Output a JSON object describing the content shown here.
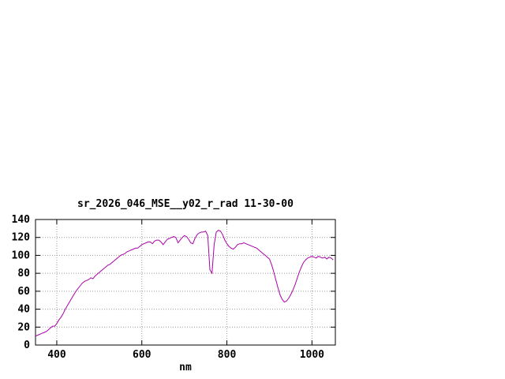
{
  "page": {
    "background": "#ffffff"
  },
  "chart_data": {
    "type": "line",
    "title": "sr_2026_046_MSE__y02_r_rad 11-30-00",
    "xlabel": "nm",
    "ylabel": "",
    "xlim": [
      350,
      1055
    ],
    "ylim": [
      0,
      140
    ],
    "xticks": [
      400,
      600,
      800,
      1000
    ],
    "yticks": [
      0,
      20,
      40,
      60,
      80,
      100,
      120,
      140
    ],
    "grid": true,
    "legend": "none",
    "line_color": "#aa00aa",
    "grid_color": "#9a9a9a",
    "border_color": "#000000",
    "series": [
      {
        "x": [
          350,
          355,
          360,
          365,
          370,
          375,
          380,
          385,
          390,
          395,
          400,
          405,
          410,
          415,
          420,
          425,
          430,
          435,
          440,
          445,
          450,
          455,
          460,
          465,
          470,
          475,
          480,
          485,
          490,
          495,
          500,
          505,
          510,
          515,
          520,
          525,
          530,
          535,
          540,
          545,
          550,
          555,
          560,
          565,
          570,
          575,
          580,
          585,
          590,
          595,
          600,
          605,
          610,
          615,
          620,
          625,
          630,
          635,
          640,
          645,
          650,
          655,
          660,
          665,
          670,
          675,
          680,
          685,
          690,
          695,
          700,
          705,
          710,
          715,
          720,
          725,
          730,
          735,
          740,
          745,
          750,
          755,
          760,
          765,
          770,
          775,
          780,
          785,
          790,
          795,
          800,
          805,
          810,
          815,
          820,
          825,
          830,
          835,
          840,
          845,
          850,
          855,
          860,
          865,
          870,
          875,
          880,
          885,
          890,
          895,
          900,
          905,
          910,
          915,
          920,
          925,
          930,
          935,
          940,
          945,
          950,
          955,
          960,
          965,
          970,
          975,
          980,
          985,
          990,
          995,
          1000,
          1005,
          1010,
          1015,
          1020,
          1025,
          1030,
          1035,
          1040,
          1045,
          1050
        ],
        "y": [
          10,
          11,
          12,
          13,
          14,
          15,
          17,
          19,
          21,
          21,
          24,
          28,
          31,
          35,
          40,
          44,
          48,
          52,
          56,
          60,
          63,
          66,
          69,
          71,
          72,
          73,
          75,
          74,
          77,
          79,
          81,
          83,
          85,
          87,
          89,
          90,
          92,
          94,
          96,
          98,
          100,
          101,
          102,
          104,
          105,
          106,
          107,
          108,
          108,
          110,
          112,
          113,
          114,
          115,
          115,
          113,
          116,
          117,
          117,
          115,
          112,
          115,
          118,
          119,
          120,
          121,
          120,
          114,
          117,
          120,
          122,
          121,
          118,
          114,
          113,
          119,
          123,
          125,
          126,
          126,
          127,
          122,
          84,
          80,
          112,
          126,
          128,
          127,
          123,
          117,
          113,
          110,
          108,
          107,
          109,
          112,
          113,
          113,
          114,
          113,
          112,
          111,
          110,
          109,
          108,
          106,
          104,
          102,
          100,
          98,
          96,
          90,
          82,
          73,
          64,
          56,
          51,
          48,
          49,
          52,
          56,
          61,
          67,
          74,
          81,
          87,
          92,
          95,
          97,
          98,
          99,
          98,
          97,
          99,
          98,
          97,
          98,
          96,
          98,
          97,
          95
        ]
      }
    ]
  }
}
